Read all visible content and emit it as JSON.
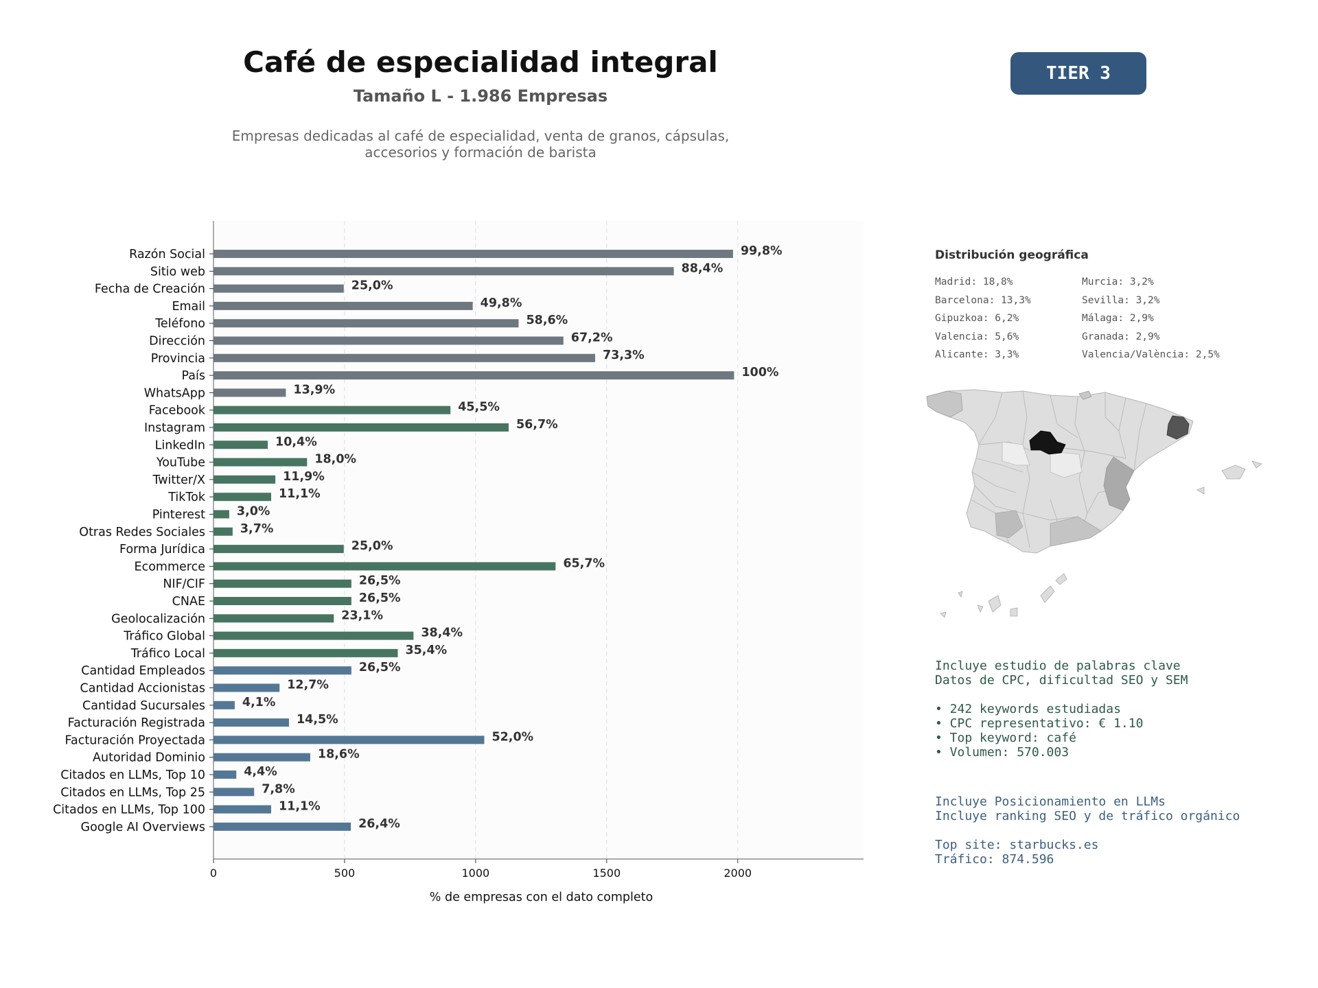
{
  "header": {
    "title": "Café de especialidad integral",
    "subtitle": "Tamaño L - 1.986 Empresas",
    "description_lines": [
      "Empresas dedicadas al café de especialidad, venta de granos, cápsulas,",
      "accesorios y formación de barista"
    ]
  },
  "tier_badge": {
    "label": "TIER 3",
    "color": "#34587d"
  },
  "colors": {
    "grey": "#6e7880",
    "green": "#477562",
    "blue": "#557796",
    "panel_bg": "#fcfcfc"
  },
  "chart_data": {
    "type": "bar",
    "orientation": "horizontal",
    "xlabel": "% de empresas con el dato completo",
    "xlim": [
      0,
      2480
    ],
    "xticks": [
      0,
      500,
      1000,
      1500,
      2000
    ],
    "grid": true,
    "categories": [
      "Razón Social",
      "Sitio web",
      "Fecha de Creación",
      "Email",
      "Teléfono",
      "Dirección",
      "Provincia",
      "País",
      "WhatsApp",
      "Facebook",
      "Instagram",
      "LinkedIn",
      "YouTube",
      "Twitter/X",
      "TikTok",
      "Pinterest",
      "Otras Redes Sociales",
      "Forma Jurídica",
      "Ecommerce",
      "NIF/CIF",
      "CNAE",
      "Geolocalización",
      "Tráfico Global",
      "Tráfico Local",
      "Cantidad Empleados",
      "Cantidad Accionistas",
      "Cantidad Sucursales",
      "Facturación Registrada",
      "Facturación Proyectada",
      "Autoridad Dominio",
      "Citados en LLMs, Top 10",
      "Citados en LLMs, Top 25",
      "Citados en LLMs, Top 100",
      "Google AI Overviews"
    ],
    "values": [
      1982,
      1756,
      497,
      989,
      1164,
      1335,
      1456,
      1986,
      276,
      904,
      1126,
      207,
      357,
      236,
      220,
      60,
      73,
      497,
      1305,
      526,
      526,
      459,
      763,
      703,
      526,
      252,
      81,
      288,
      1033,
      369,
      87,
      155,
      220,
      524
    ],
    "labels": [
      "99,8%",
      "88,4%",
      "25,0%",
      "49,8%",
      "58,6%",
      "67,2%",
      "73,3%",
      "100%",
      "13,9%",
      "45,5%",
      "56,7%",
      "10,4%",
      "18,0%",
      "11,9%",
      "11,1%",
      "3,0%",
      "3,7%",
      "25,0%",
      "65,7%",
      "26,5%",
      "26,5%",
      "23,1%",
      "38,4%",
      "35,4%",
      "26,5%",
      "12,7%",
      "4,1%",
      "14,5%",
      "52,0%",
      "18,6%",
      "4,4%",
      "7,8%",
      "11,1%",
      "26,4%"
    ],
    "groups": [
      "grey",
      "grey",
      "grey",
      "grey",
      "grey",
      "grey",
      "grey",
      "grey",
      "grey",
      "green",
      "green",
      "green",
      "green",
      "green",
      "green",
      "green",
      "green",
      "green",
      "green",
      "green",
      "green",
      "green",
      "green",
      "green",
      "blue",
      "blue",
      "blue",
      "blue",
      "blue",
      "blue",
      "blue",
      "blue",
      "blue",
      "blue"
    ]
  },
  "geo": {
    "title": "Distribución geográfica",
    "col1": [
      "Madrid: 18,8%",
      "Barcelona: 13,3%",
      "Gipuzkoa: 6,2%",
      "Valencia: 5,6%",
      "Alicante: 3,3%"
    ],
    "col2": [
      "Murcia: 3,2%",
      "Sevilla: 3,2%",
      "Málaga: 2,9%",
      "Granada: 2,9%",
      "Valencia/València: 2,5%"
    ]
  },
  "seo_info": {
    "lines": [
      "Incluye estudio de palabras clave",
      "Datos de CPC, dificultad SEO y SEM",
      "",
      "• 242 keywords estudiadas",
      "• CPC representativo: € 1.10",
      "• Top keyword: café",
      "• Volumen: 570.003"
    ],
    "color": "#2e5a46"
  },
  "llm_info": {
    "lines": [
      "Incluye Posicionamiento en LLMs",
      "Incluye ranking SEO y de tráfico orgánico",
      "",
      "Top site: starbucks.es",
      "Tráfico: 874.596"
    ],
    "color": "#3d5f80"
  }
}
